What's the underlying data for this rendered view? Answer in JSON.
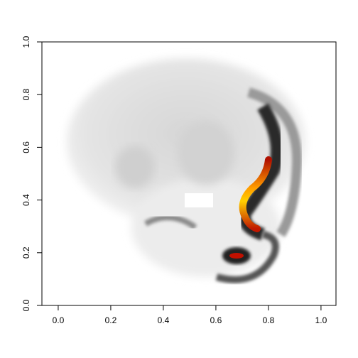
{
  "chart_data": {
    "type": "image",
    "xlim": [
      -0.062,
      1.057
    ],
    "ylim": [
      0,
      1
    ],
    "xticks": [
      {
        "value": 0,
        "label": "0.0"
      },
      0.2,
      0.4,
      0.6,
      0.8,
      {
        "value": 1,
        "label": "1.0"
      }
    ],
    "yticks": [
      {
        "value": 0,
        "label": "0.0"
      },
      0.2,
      0.4,
      0.6,
      0.8,
      {
        "value": 1,
        "label": "1.0"
      }
    ]
  }
}
